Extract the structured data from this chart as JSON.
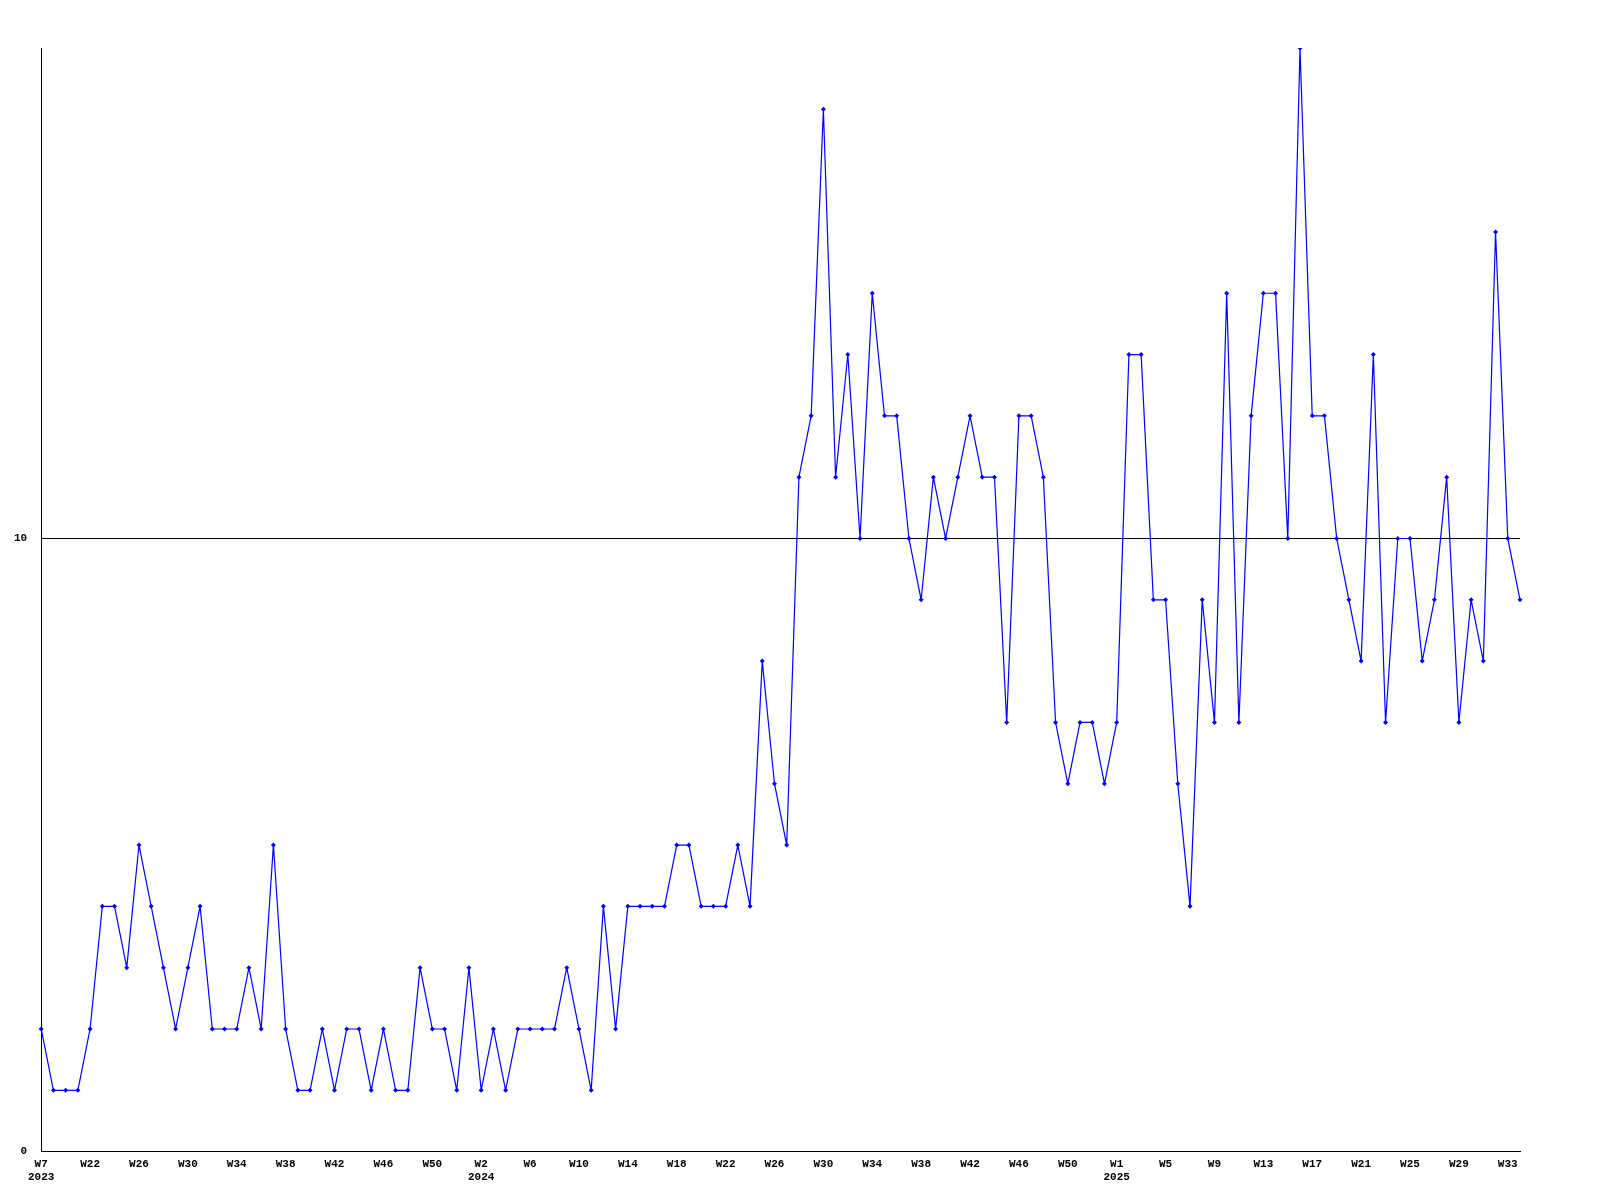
{
  "chart_data": {
    "type": "line",
    "categories": [
      "W7\n2023",
      null,
      null,
      null,
      "W22",
      null,
      null,
      null,
      "W26",
      null,
      null,
      null,
      "W30",
      null,
      null,
      null,
      "W34",
      null,
      null,
      null,
      "W38",
      null,
      null,
      null,
      "W42",
      null,
      null,
      null,
      "W46",
      null,
      null,
      null,
      "W50",
      null,
      null,
      null,
      "W2\n2024",
      null,
      null,
      null,
      "W6",
      null,
      null,
      null,
      "W10",
      null,
      null,
      null,
      "W14",
      null,
      null,
      null,
      "W18",
      null,
      null,
      null,
      "W22",
      null,
      null,
      null,
      "W26",
      null,
      null,
      null,
      "W30",
      null,
      null,
      null,
      "W34",
      null,
      null,
      null,
      "W38",
      null,
      null,
      null,
      "W42",
      null,
      null,
      null,
      "W46",
      null,
      null,
      null,
      "W50",
      null,
      null,
      null,
      "W1\n2025",
      null,
      null,
      null,
      "W5",
      null,
      null,
      null,
      "W9",
      null,
      null,
      null,
      "W13",
      null,
      null,
      null,
      "W17",
      null,
      null,
      null,
      "W21",
      null,
      null,
      null,
      "W25",
      null,
      null,
      null,
      "W29",
      null,
      null,
      null,
      "W33",
      null
    ],
    "series": [
      {
        "color": "#0000ff",
        "values": [
          2,
          1,
          1,
          1,
          2,
          4,
          4,
          3,
          5,
          4,
          3,
          2,
          3,
          4,
          2,
          2,
          2,
          3,
          2,
          5,
          2,
          1,
          1,
          2,
          1,
          2,
          2,
          1,
          2,
          1,
          1,
          3,
          2,
          2,
          1,
          3,
          1,
          2,
          1,
          2,
          2,
          2,
          2,
          3,
          2,
          1,
          4,
          2,
          4,
          4,
          4,
          4,
          5,
          5,
          4,
          4,
          4,
          5,
          4,
          8,
          6,
          5,
          11,
          12,
          17,
          11,
          13,
          10,
          14,
          12,
          12,
          10,
          9,
          11,
          10,
          11,
          12,
          11,
          11,
          7,
          12,
          12,
          11,
          7,
          6,
          7,
          7,
          6,
          7,
          13,
          13,
          9,
          9,
          6,
          4,
          9,
          7,
          14,
          7,
          12,
          14,
          14,
          10,
          18,
          12,
          12,
          10,
          9,
          8,
          13,
          7,
          10,
          10,
          8,
          9,
          11,
          7,
          9,
          8,
          15,
          10,
          9
        ]
      }
    ],
    "ylim": [
      0,
      18
    ],
    "yticks": [
      0,
      10
    ],
    "grid": "y",
    "legend": false,
    "marker": "diamond",
    "line_style": "solid"
  }
}
